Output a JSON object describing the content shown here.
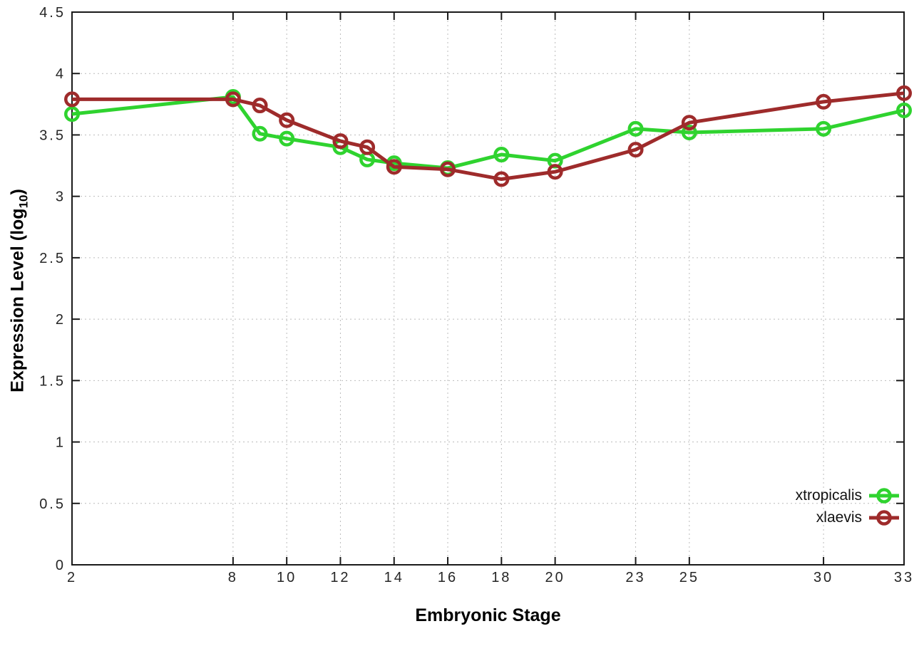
{
  "chart_data": {
    "type": "line",
    "title": "",
    "xlabel": "Embryonic Stage",
    "ylabel": {
      "prefix": "Expression Level (log",
      "sub": "10",
      "suffix": ")"
    },
    "x": [
      2,
      8,
      9,
      10,
      12,
      13,
      14,
      16,
      18,
      20,
      23,
      25,
      30,
      33
    ],
    "series": [
      {
        "name": "xtropicalis",
        "color": "#2fd32f",
        "values": [
          3.67,
          3.81,
          3.51,
          3.47,
          3.4,
          3.3,
          3.27,
          3.23,
          3.34,
          3.29,
          3.55,
          3.52,
          3.55,
          3.7
        ]
      },
      {
        "name": "xlaevis",
        "color": "#9e2b2b",
        "values": [
          3.79,
          3.79,
          3.74,
          3.62,
          3.45,
          3.4,
          3.24,
          3.22,
          3.14,
          3.2,
          3.38,
          3.6,
          3.77,
          3.84
        ]
      }
    ],
    "xlim": [
      2,
      33
    ],
    "ylim": [
      0,
      4.5
    ],
    "xticks": [
      2,
      8,
      10,
      12,
      14,
      16,
      18,
      20,
      23,
      25,
      30,
      33
    ],
    "xtick_labels": [
      "2",
      "8",
      "10",
      "12",
      "14",
      "16",
      "18",
      "20",
      "23",
      "25",
      "30",
      "33"
    ],
    "yticks": [
      0,
      0.5,
      1,
      1.5,
      2,
      2.5,
      3,
      3.5,
      4,
      4.5
    ],
    "ytick_labels": [
      "0",
      "0.5",
      "1",
      "1.5",
      "2",
      "2.5",
      "3",
      "3.5",
      "4",
      "4.5"
    ],
    "grid": true,
    "legend_position": "bottom-right",
    "marker": "open-circle"
  },
  "axes": {
    "x_title": "Embryonic Stage",
    "y_title_prefix": "Expression Level (log",
    "y_title_sub": "10",
    "y_title_suffix": ")"
  },
  "legend": {
    "items": [
      {
        "label": "xtropicalis",
        "color": "#2fd32f"
      },
      {
        "label": "xlaevis",
        "color": "#9e2b2b"
      }
    ]
  },
  "style": {
    "border_color": "#1a1a1a",
    "grid_color": "#bcbcbc",
    "tick_label_color": "#262626",
    "background": "#ffffff"
  }
}
